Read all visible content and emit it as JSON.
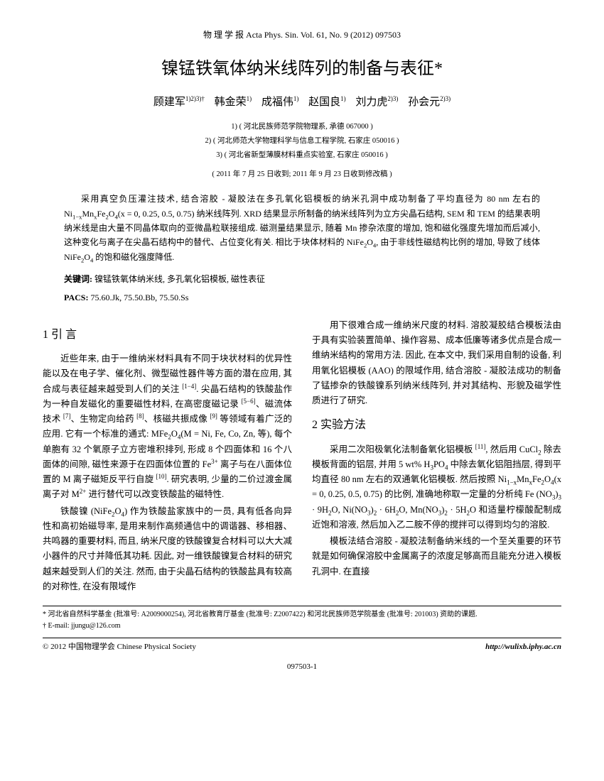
{
  "journal_header": "物 理 学 报   Acta Phys. Sin.   Vol. 61, No. 9 (2012)   097503",
  "title": "镍锰铁氧体纳米线阵列的制备与表征*",
  "authors_html": "顾建军<sup>1)2)3)†</sup>  韩金荣<sup>1)</sup>  成福伟<sup>1)</sup>  赵国良<sup>1)</sup>  刘力虎<sup>2)3)</sup>  孙会元<sup>2)3)</sup>",
  "affiliations": [
    "1) ( 河北民族师范学院物理系, 承德  067000 )",
    "2) ( 河北师范大学物理科学与信息工程学院, 石家庄  050016 )",
    "3) ( 河北省新型薄膜材料重点实验室, 石家庄  050016 )"
  ],
  "dates": "( 2011 年 7 月 25 日收到; 2011 年 9 月 23 日收到修改稿 )",
  "abstract_html": "采用真空负压灌注技术, 结合溶胶 - 凝胶法在多孔氧化铝模板的纳米孔洞中成功制备了平均直径为 80 nm 左右的 Ni<sub>1−x</sub>Mn<sub>x</sub>Fe<sub>2</sub>O<sub>4</sub>(x = 0, 0.25, 0.5, 0.75) 纳米线阵列. XRD 结果显示所制备的纳米线阵列为立方尖晶石结构, SEM 和 TEM 的结果表明纳米线是由大量不同晶体取向的亚微晶粒联接组成. 磁测量结果显示, 随着 Mn 掺杂浓度的增加, 饱和磁化强度先增加而后减小, 这种变化与离子在尖晶石结构中的替代、占位变化有关. 相比于块体材料的 NiFe<sub>2</sub>O<sub>4</sub>, 由于非线性磁结构比例的增加, 导致了线体 NiFe<sub>2</sub>O<sub>4</sub> 的饱和磁化强度降低.",
  "keywords_label": "关键词:",
  "keywords": "镍锰铁氧体纳米线, 多孔氧化铝模板, 磁性表征",
  "pacs_label": "PACS:",
  "pacs": "75.60.Jk, 75.50.Bb, 75.50.Ss",
  "section1": "1  引 言",
  "section2": "2  实验方法",
  "col1_p1_html": "近些年来, 由于一维纳米材料具有不同于块状材料的优异性能以及在电子学、催化剂、微型磁性器件等方面的潜在应用, 其合成与表征越来越受到人们的关注 <sup>[1−4]</sup>. 尖晶石结构的铁酸盐作为一种自发磁化的重要磁性材料, 在高密度磁记录 <sup>[5−6]</sup>、磁流体技术 <sup>[7]</sup>、生物定向给药 <sup>[8]</sup>、核磁共振成像 <sup>[9]</sup> 等领域有着广泛的应用. 它有一个标准的通式: MFe<sub>2</sub>O<sub>4</sub>(M = Ni, Fe, Co, Zn, 等), 每个单胞有 32 个氧原子立方密堆积排列, 形成 8 个四面体和 16 个八面体的间隙, 磁性来源于在四面体位置的 Fe<sup>3+</sup> 离子与在八面体位置的 M 离子磁矩反平行自旋 <sup>[10]</sup>. 研究表明, 少量的二价过渡金属离子对 M<sup>2+</sup> 进行替代可以改变铁酸盐的磁特性.",
  "col1_p2_html": "铁酸镍 (NiFe<sub>2</sub>O<sub>4</sub>) 作为铁酸盐家族中的一员, 具有低各向异性和高初始磁导率, 是用来制作高频通信中的调谐器、移相器、共鸣器的重要材料, 而且, 纳米尺度的铁酸镍复合材料可以大大减小器件的尺寸并降低其功耗. 因此, 对一维铁酸镍复合材料的研究越来越受到人们的关注. 然而, 由于尖晶石结构的铁酸盐具有较高的对称性, 在没有限域作",
  "col2_p1_html": "用下很难合成一维纳米尺度的材料. 溶胶凝胶结合模板法由于具有实验装置简单、操作容易、成本低廉等诸多优点是合成一维纳米结构的常用方法. 因此, 在本文中, 我们采用自制的设备, 利用氧化铝模板 (AAO) 的限域作用, 结合溶胶 - 凝胶法成功的制备了锰掺杂的铁酸镍系列纳米线阵列, 并对其结构、形貌及磁学性质进行了研究.",
  "col2_p2_html": "采用二次阳极氧化法制备氧化铝模板 <sup>[11]</sup>, 然后用 CuCl<sub>2</sub> 除去模板背面的铝层, 并用 5 wt% H<sub>3</sub>PO<sub>4</sub> 中除去氧化铝阻挡层, 得到平均直径 80 nm 左右的双通氧化铝模板. 然后按照 Ni<sub>1−x</sub>Mn<sub>x</sub>Fe<sub>2</sub>O<sub>4</sub>(x = 0, 0.25, 0.5, 0.75) 的比例, 准确地称取一定量的分析纯 Fe (NO<sub>3</sub>)<sub>3</sub> · 9H<sub>2</sub>O, Ni(NO<sub>3</sub>)<sub>2</sub> · 6H<sub>2</sub>O, Mn(NO<sub>3</sub>)<sub>2</sub> · 5H<sub>2</sub>O 和适量柠檬酸配制成近饱和溶液, 然后加入乙二胺不停的搅拌可以得到均匀的溶胶.",
  "col2_p3_html": "模板法结合溶胶 - 凝胶法制备纳米线的一个至关重要的环节就是如何确保溶胶中金属离子的浓度足够高而且能充分进入模板孔洞中. 在直接",
  "footnote1": "* 河北省自然科学基金 (批准号: A2009000254), 河北省教育厅基金 (批准号: Z2007422) 和河北民族师范学院基金 (批准号: 201003) 资助的课题.",
  "footnote2": "† E-mail: jjungu@126.com",
  "footer_left": "© 2012 中国物理学会  Chinese Physical Society",
  "footer_right": "http://wulixb.iphy.ac.cn",
  "page_number": "097503-1"
}
